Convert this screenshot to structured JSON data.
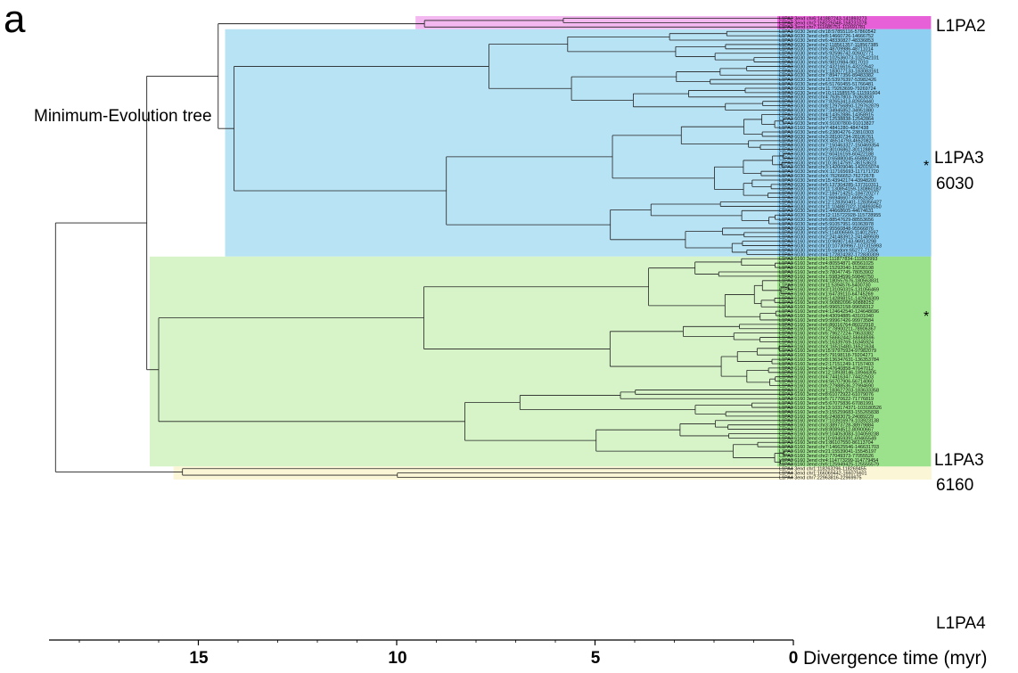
{
  "figure": {
    "panel_letter": "a",
    "title": "Minimum-Evolution tree",
    "axis": {
      "title": "Divergence time (myr)",
      "tick_labels": [
        "15",
        "10",
        "5",
        "0"
      ],
      "tick_values": [
        15,
        10,
        5,
        0
      ]
    },
    "clade_colors": {
      "L1PA2": "#f4b8f0",
      "L1PA3_6030": "#b8e3f4",
      "L1PA3_6160": "#d6f4c8",
      "L1PA4": "#fbf6d6",
      "leaf_6030_band": "#8fd0f2",
      "leaf_6160_band": "#9ce28c",
      "leaf_pa2_band": "#e860d8"
    },
    "clades": [
      {
        "key": "L1PA2",
        "label_lines": [
          "L1PA2"
        ],
        "root_age": 9.3
      },
      {
        "key": "L1PA3_6030",
        "label_lines": [
          "L1PA3",
          "6030"
        ],
        "root_age": 14.1
      },
      {
        "key": "L1PA3_6160",
        "label_lines": [
          "L1PA3",
          "6160"
        ],
        "root_age": 16.0
      },
      {
        "key": "L1PA4",
        "label_lines": [
          "L1PA4"
        ],
        "root_age": 15.4
      }
    ],
    "marker": "*",
    "leaves": {
      "L1PA2": [
        "L1PA2 3end chr6:141887243-141893273",
        "L1PA2 3end chr2:158225048-158231078",
        "L1PA2 3end chr7:111685751-111691781"
      ],
      "L1PA3_6030": [
        "L1PA3 6030 3end chr18:57855116-57860542",
        "L1PA3 6030 3end chr8:14660726-14666752",
        "L1PA3 6030 3end chr6:48330827-48336853",
        "L1PA3 6030 3end chr2:118561357-118567385",
        "L1PA3 6030 3end chr6:48709986-48711014",
        "L1PA3 6030 3end chr5:92596742-92602771",
        "L1PA3 6030 3end chr6:102536073-102542101",
        "L1PA3 6030 3end chr6:9810984-9817010",
        "L1PA3 6030 3end chr2:43216616-43222642",
        "L1PA3 6030 3end chr1:183077133-183083161",
        "L1PA3 6030 3end chr7:89477356-89483382",
        "L1PA3 6030 3end chr15:53976397-53982426",
        "L1PA3 6030 3end chr6:51760455-51766481",
        "L1PA3 6030 3end chr11:79263699-79269724",
        "L1PA3 6030 3end chr10:111585576-111591604",
        "L1PA3 6030 3end chr4:76357803-76363830",
        "L1PA3 6030 3end chr7:82653413-82659440",
        "L1PA3 6030 3end chr8:129756850-129762879",
        "L1PA3 6030 3end chr7:34945852-34951880",
        "L1PA3 6030 3end chr4:14352886-14358915",
        "L1PA3 6030 3end chr7:12538838-12542864",
        "L1PA3 6030 3end chrX:91007800-91013827",
        "L1PA3 6160 3end chrY:4841280-4847438",
        "L1PA3 6030 3end chr6:23804276-23810303",
        "L1PA3 6030 3end chr3:28100734-28106761",
        "L1PA3 6030 3end chrX:46514793-46520820",
        "L1PA3 6030 3end chr7:150463327-150469354",
        "L1PA3 6030 3end chr9:30106862-30112889",
        "L1PA3 6030 3end chr2:60416159-60422188",
        "L1PA3 6030 3end chr10:65880045-65886073",
        "L1PA3 6030 3end chr10:36147597-36153623",
        "L1PA3 6030 3end chr3:142009046-142015074",
        "L1PA3 6030 3end chrX:117165693-117171720",
        "L1PA3 6030 3end chrX:76266652-76272678",
        "L1PA3 6030 3end chr15:43942174-43948200",
        "L1PA3 6030 3end chr5:137304285-137310311",
        "L1PA3 6030 3end chr11:130854159-130860187",
        "L1PA3 6030 3end chr2:184714251-184720277",
        "L1PA3 6030 3end chr1:66946607-66952635",
        "L1PA3 6030 3end chr12:128350401-128356427",
        "L1PA3 6030 3end chr11:104887022-104893050",
        "L1PA3 6030 3end chr1:44668605-44674631",
        "L1PA3 6030 3end chr12:115722928-115728955",
        "L1PA3 6030 3end chr6:88547629-88553656",
        "L1PA3 6030 3end chr5:91057951-91063978",
        "L1PA3 6030 3end chr6:95560848-95566876",
        "L1PA3 6030 3end chr5:114006569-114012597",
        "L1PA3 6030 3end chr2:241483912-241489939",
        "L1PA3 6160 3end chr10:96907143-96913298",
        "L1PA3 6030 3end chr10:107309967-107315993",
        "L1PA3 6030 3end chr19 random:65277-71304",
        "L1PA3 6030 3end chr4:172824282-172830309"
      ],
      "L1PA3_6160": [
        "L1PA3 6160 3end chr1:111877834-111883993",
        "L1PA3 6160 3end chr4:80554871-80561025",
        "L1PA3 6160 3end chr5:15292040-15298198",
        "L1PA3 6160 3end chr3:78047745-78053902",
        "L1PA3 6160 3end chr1:59834596-59840750",
        "L1PA3 6160 3end chr4:180557676-180563831",
        "L1PA3 6160 3end chr11:5394576-5400730",
        "L1PA3 6160 3end chr3:131050315-131056469",
        "L1PA3 6160 3end chr1:64739110-64745269",
        "L1PA3 6160 3end chr6:142898151-142904309",
        "L1PA3 6160 3end chrX:90882096-90888252",
        "L1PA3 6160 3end chr6:99652158-99658312",
        "L1PA3 6160 3end chr4:124642540-124648696",
        "L1PA3 6160 3end chr4:43094885-43101040",
        "L1PA3 6160 3end chr9:99967426-99973584",
        "L1PA3 6160 3end chr6:86016764-86022918",
        "L1PA3 6160 3end chr12:78900211-78906367",
        "L1PA3 6160 3end chr6:79627224-79633382",
        "L1PA3 6160 3end chrX:56662442-56668596",
        "L1PA3 6160 3end chr5:16339769-16345924",
        "L1PA3 6160 3end chrX:16515480-16521634",
        "L1PA3 6160 3end chr15:97975924-97982079",
        "L1PA3 6160 3end chr5:79198118-79204271",
        "L1PA3 6160 3end chr8:136347631-136353784",
        "L1PA3 6160 3end chr2:17151249-17157403",
        "L1PA3 6160 3end chr4:47640858-47647012",
        "L1PA3 6160 3end chr12:18938146-18944305",
        "L1PA3 6160 3end chr4:74416347-74422503",
        "L1PA3 6160 3end chr4:56707906-56714060",
        "L1PA3 6160 3end chr6:27988536-27994690",
        "L1PA3 6160 3end chr1:183627203-183633358",
        "L1PA3 6160 3end chr8:61072922-61079076",
        "L1PA3 6160 3end chr5:71770622-71776819",
        "L1PA3 6160 3end chr5:67075836-67081991",
        "L1PA3 6160 3end chr13:103174371-103180526",
        "L1PA3 6160 3end chr3:155259683-155265838",
        "L1PA3 6160 3end chr6:24083075-24089229",
        "L1PA3 6160 3end chr7:103916979-103923138",
        "L1PA3 6160 3end chr3:38973728-38979884",
        "L1PA3 6160 3end chr8:80894512-80900667",
        "L1PA3 6160 3end chr9:104053083-104059238",
        "L1PA3 6160 3end chr10:69459391-69465549",
        "L1PA3 6160 3end chr1:86107550-86113704",
        "L1PA3 6160 3end chr7:146625546-146631703",
        "L1PA3 6160 3end chr21:15539041-15545197",
        "L1PA3 6160 3end chr2:77049373-77055526",
        "L1PA3 6160 3end chr4:114773299-114779454",
        "L1PA3 6160 3end chr6:125949425-125555579"
      ],
      "L1PA4": [
        "L1PA4 3end chr1:118263296-118269455",
        "L1PA4 3end chr1:166069442-166075601",
        "L1PA4 3end chr7:22963816-22969975"
      ]
    },
    "starred_leaves": [
      "L1PA3 6160 3end chrY:4841280-4847438",
      "L1PA3 6160 3end chr10:96907143-96913298"
    ]
  }
}
